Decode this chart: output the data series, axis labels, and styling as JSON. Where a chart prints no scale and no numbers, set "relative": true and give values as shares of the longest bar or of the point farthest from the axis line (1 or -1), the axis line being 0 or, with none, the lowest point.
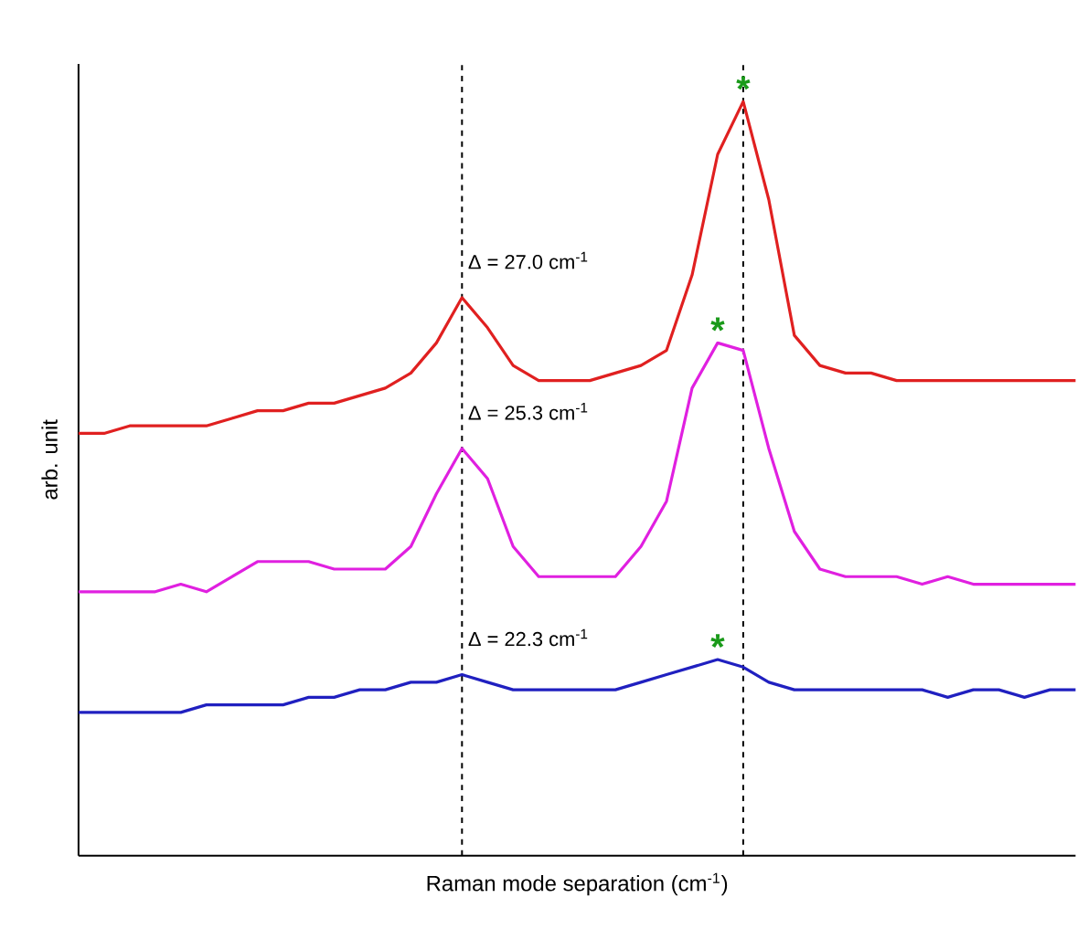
{
  "chart_data": {
    "type": "line",
    "relative": true,
    "xlabel": "Raman mode separation (cm$^{-1}$)",
    "ylabel": "arb. unit",
    "categories": [
      null,
      null,
      null,
      null,
      null,
      null,
      null,
      null,
      null,
      null,
      null,
      null,
      null,
      null,
      null,
      null,
      null,
      null,
      null,
      null,
      null,
      null,
      null,
      null,
      null,
      null,
      null,
      null,
      null,
      null,
      null,
      null,
      null,
      null,
      null,
      null,
      null,
      null,
      null,
      null
    ],
    "series": [
      {
        "color": "#e02020",
        "values": [
          0.56,
          0.56,
          0.57,
          0.57,
          0.57,
          0.57,
          0.58,
          0.59,
          0.59,
          0.6,
          0.6,
          0.61,
          0.62,
          0.64,
          0.68,
          0.74,
          0.7,
          0.65,
          0.63,
          0.63,
          0.63,
          0.64,
          0.65,
          0.67,
          0.77,
          0.93,
          1.0,
          0.87,
          0.69,
          0.65,
          0.64,
          0.64,
          0.63,
          0.63,
          0.63,
          0.63,
          0.63,
          0.63,
          0.63,
          0.63
        ]
      },
      {
        "color": "#e020e0",
        "values": [
          0.35,
          0.35,
          0.35,
          0.35,
          0.36,
          0.35,
          0.37,
          0.39,
          0.39,
          0.39,
          0.38,
          0.38,
          0.38,
          0.41,
          0.48,
          0.54,
          0.5,
          0.41,
          0.37,
          0.37,
          0.37,
          0.37,
          0.41,
          0.47,
          0.62,
          0.68,
          0.67,
          0.54,
          0.43,
          0.38,
          0.37,
          0.37,
          0.37,
          0.36,
          0.37,
          0.36,
          0.36,
          0.36,
          0.36,
          0.36
        ]
      },
      {
        "color": "#2020c0",
        "values": [
          0.19,
          0.19,
          0.19,
          0.19,
          0.19,
          0.2,
          0.2,
          0.2,
          0.2,
          0.21,
          0.21,
          0.22,
          0.22,
          0.23,
          0.23,
          0.24,
          0.23,
          0.22,
          0.22,
          0.22,
          0.22,
          0.22,
          0.23,
          0.24,
          0.25,
          0.26,
          0.25,
          0.23,
          0.22,
          0.22,
          0.22,
          0.22,
          0.22,
          0.22,
          0.21,
          0.22,
          0.22,
          0.21,
          0.22,
          0.22
        ]
      }
    ],
    "annotations": [
      "Δ = 27.0 cm$^{-1}$",
      "Δ = 25.3 cm$^{-1}$",
      "Δ = 22.3 cm$^{-1}$",
      "*",
      "*",
      "*"
    ]
  }
}
